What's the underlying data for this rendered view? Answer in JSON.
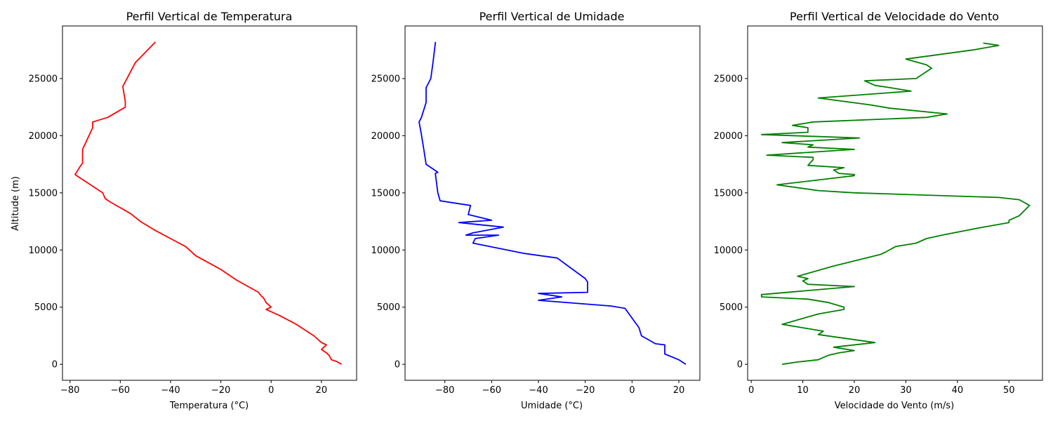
{
  "chart_data": [
    {
      "type": "line",
      "title": "Perfil Vertical de Temperatura",
      "xlabel": "Temperatura (°C)",
      "ylabel": "Altitude (m)",
      "xlim": [
        -83,
        34
      ],
      "ylim": [
        -1400,
        29600
      ],
      "xticks": [
        -80,
        -60,
        -40,
        -20,
        0,
        20
      ],
      "yticks": [
        0,
        5000,
        10000,
        15000,
        20000,
        25000
      ],
      "grid": false,
      "color": "#ff0000",
      "series": [
        {
          "x": [
            28,
            26,
            24,
            23,
            22,
            20,
            21,
            22,
            20,
            17,
            10,
            3,
            -2,
            0,
            -2,
            -3,
            -4,
            -5,
            -14,
            -20,
            -25,
            -30,
            -34,
            -40,
            -46,
            -49,
            -52,
            -56,
            -64,
            -66,
            -67,
            -78,
            -76,
            -75,
            -75,
            -71,
            -71,
            -65,
            -58,
            -58,
            -59,
            -54,
            -46
          ],
          "y": [
            0,
            250,
            400,
            800,
            1000,
            1300,
            1500,
            1700,
            1900,
            2500,
            3500,
            4300,
            4800,
            5000,
            5400,
            5800,
            6000,
            6300,
            7400,
            8300,
            8900,
            9500,
            10300,
            11000,
            11700,
            12100,
            12500,
            13200,
            14200,
            14500,
            15000,
            16600,
            17300,
            17600,
            18800,
            20700,
            21200,
            21600,
            22500,
            23000,
            24300,
            26400,
            28200
          ]
        }
      ]
    },
    {
      "type": "line",
      "title": "Perfil Vertical de Umidade",
      "xlabel": "Umidade (°C)",
      "ylabel": "",
      "xlim": [
        -97,
        29
      ],
      "ylim": [
        -1400,
        29600
      ],
      "xticks": [
        -80,
        -60,
        -40,
        -20,
        0,
        20
      ],
      "yticks": [
        0,
        5000,
        10000,
        15000,
        20000,
        25000
      ],
      "grid": false,
      "color": "#0000ff",
      "series": [
        {
          "x": [
            23,
            20,
            14,
            14,
            10,
            4,
            3,
            -3,
            -9,
            -40,
            -30,
            -40,
            -19,
            -19,
            -20,
            -28,
            -32,
            -46,
            -68,
            -67,
            -57,
            -71,
            -68,
            -55,
            -74,
            -60,
            -70,
            -69,
            -82,
            -83,
            -84,
            -84,
            -83,
            -88,
            -89,
            -90,
            -91,
            -90,
            -88,
            -88,
            -88,
            -86,
            -85,
            -84
          ],
          "y": [
            0,
            400,
            900,
            1700,
            1800,
            2500,
            3200,
            4900,
            5100,
            5600,
            5900,
            6200,
            6300,
            7200,
            7500,
            8700,
            9300,
            9700,
            10600,
            11000,
            11300,
            11300,
            11500,
            12000,
            12400,
            12600,
            13100,
            13900,
            14300,
            15000,
            16600,
            16700,
            16800,
            17500,
            18800,
            20100,
            21200,
            21600,
            22900,
            23900,
            24200,
            25000,
            26500,
            28200
          ]
        }
      ]
    },
    {
      "type": "line",
      "title": "Perfil Vertical de Velocidade do Vento",
      "xlabel": "Velocidade do Vento (m/s)",
      "ylabel": "",
      "xlim": [
        -0.7,
        56.5
      ],
      "ylim": [
        -1400,
        29600
      ],
      "xticks": [
        0,
        10,
        20,
        30,
        40,
        50
      ],
      "yticks": [
        0,
        5000,
        10000,
        15000,
        20000,
        25000
      ],
      "grid": false,
      "color": "#008000",
      "series": [
        {
          "x": [
            6,
            9,
            13,
            15,
            17,
            20,
            16,
            24,
            13,
            14,
            10,
            6,
            13,
            18,
            18,
            15,
            11,
            2,
            2,
            20,
            11,
            10,
            11,
            9,
            16,
            25,
            26,
            28,
            32,
            34,
            37,
            45,
            50,
            50,
            52,
            54,
            52,
            48,
            20,
            13,
            5,
            20,
            20,
            17,
            16,
            18,
            11,
            12,
            12,
            3,
            20,
            11,
            12,
            6,
            21,
            2,
            11,
            11,
            8,
            12,
            34,
            38,
            27,
            23,
            13,
            31,
            27,
            24,
            22,
            32,
            35,
            34,
            30,
            43,
            48,
            45
          ],
          "y": [
            0,
            200,
            400,
            800,
            1000,
            1200,
            1500,
            1900,
            2600,
            2900,
            3200,
            3500,
            4400,
            4800,
            5000,
            5400,
            5700,
            5900,
            6100,
            6800,
            7000,
            7300,
            7500,
            7700,
            8600,
            9600,
            9800,
            10300,
            10600,
            11000,
            11300,
            12000,
            12400,
            12600,
            13000,
            13900,
            14400,
            14600,
            15000,
            15200,
            15700,
            16500,
            16600,
            16700,
            17000,
            17200,
            17400,
            17900,
            18100,
            18300,
            18800,
            19000,
            19200,
            19400,
            19800,
            20100,
            20300,
            20700,
            20900,
            21200,
            21600,
            21900,
            22400,
            22700,
            23300,
            23900,
            24200,
            24400,
            24800,
            25000,
            25900,
            26200,
            26700,
            27500,
            27900,
            28100
          ]
        }
      ]
    }
  ]
}
